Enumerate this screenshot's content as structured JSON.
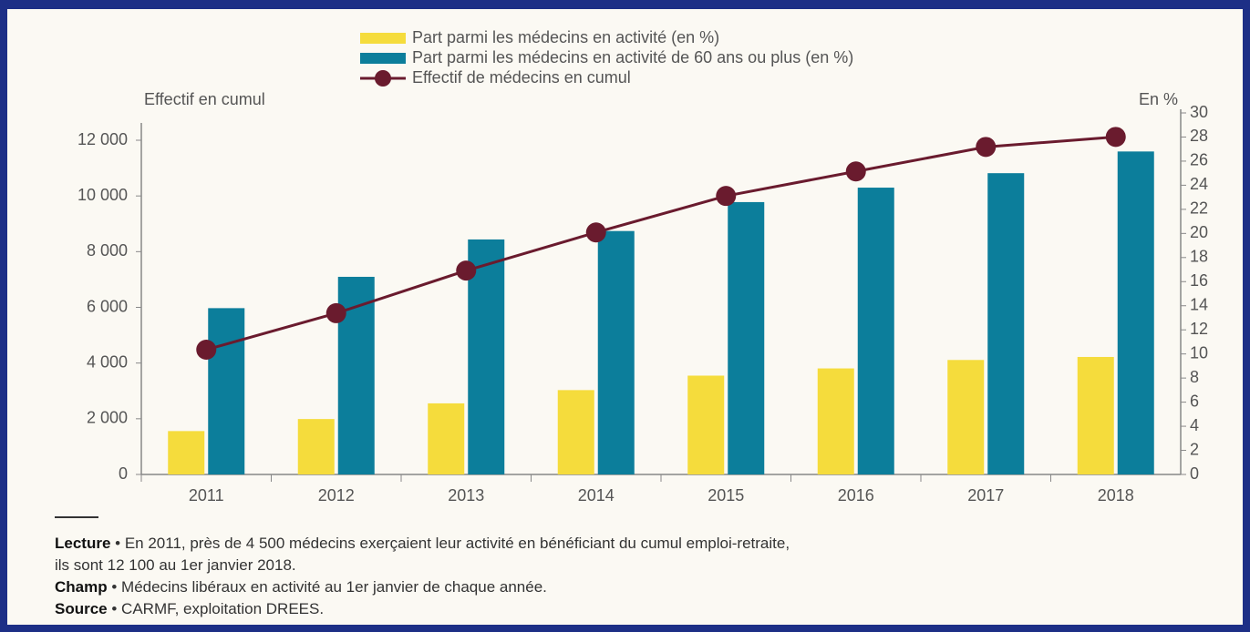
{
  "chart_data": {
    "type": "bar",
    "y_label": "Effectif en cumul",
    "y2_label": "En %",
    "categories": [
      "2011",
      "2012",
      "2013",
      "2014",
      "2015",
      "2016",
      "2017",
      "2018"
    ],
    "series": [
      {
        "name": "Part parmi les médecins en activité (en %)",
        "type": "bar",
        "axis": "y2",
        "color": "#f5dc3c",
        "values": [
          3.6,
          4.6,
          5.9,
          7.0,
          8.2,
          8.8,
          9.5,
          9.75
        ]
      },
      {
        "name": "Part parmi les médecins en activité de 60 ans ou plus (en %)",
        "type": "bar",
        "axis": "y2",
        "color": "#0c7e9b",
        "values": [
          13.8,
          16.4,
          19.5,
          20.2,
          22.6,
          23.8,
          25.0,
          26.8
        ]
      },
      {
        "name": "Effectif de médecins en cumul",
        "type": "line",
        "axis": "y",
        "color": "#6a1b2e",
        "values": [
          4480,
          5790,
          7320,
          8690,
          10000,
          10880,
          11760,
          12120
        ]
      }
    ],
    "ylim": [
      0,
      13000
    ],
    "yticks": [
      0,
      {
        "value": 2000,
        "label": "2 000"
      },
      {
        "value": 4000,
        "label": "4 000"
      },
      {
        "value": 6000,
        "label": "6 000"
      },
      {
        "value": 8000,
        "label": "8 000"
      },
      {
        "value": 10000,
        "label": "10 000"
      },
      {
        "value": 12000,
        "label": "12 000"
      }
    ],
    "y2lim": [
      0,
      30
    ],
    "y2ticks": [
      0,
      2,
      4,
      6,
      8,
      10,
      12,
      14,
      16,
      18,
      20,
      22,
      24,
      26,
      28,
      30
    ],
    "legend": "top",
    "notes": [
      {
        "label": "Lecture",
        "text": "• En 2011, près de 4 500 médecins exerçaient leur activité en bénéficiant du cumul emploi-retraite,"
      },
      {
        "text": "ils sont 12 100 au 1er janvier 2018."
      },
      {
        "label": "Champ",
        "text": "• Médecins libéraux en activité au 1er janvier de chaque année."
      },
      {
        "label": "Source",
        "text": "• CARMF, exploitation DREES."
      }
    ]
  }
}
